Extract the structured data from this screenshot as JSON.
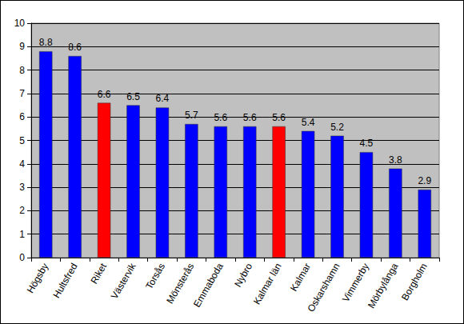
{
  "chart_data": {
    "type": "bar",
    "categories": [
      "Högsby",
      "Hultsfred",
      "Riket",
      "Västervik",
      "Torsås",
      "Mönsterås",
      "Emmaboda",
      "Nybro",
      "Kalmar län",
      "Kalmar",
      "Oskarshamn",
      "Vimmerby",
      "Mörbylånga",
      "Borgholm"
    ],
    "values": [
      8.8,
      8.6,
      6.6,
      6.5,
      6.4,
      5.7,
      5.6,
      5.6,
      5.6,
      5.4,
      5.2,
      4.5,
      3.8,
      2.9
    ],
    "colors": [
      "#0000ff",
      "#0000ff",
      "#ff0000",
      "#0000ff",
      "#0000ff",
      "#0000ff",
      "#0000ff",
      "#0000ff",
      "#ff0000",
      "#0000ff",
      "#0000ff",
      "#0000ff",
      "#0000ff",
      "#0000ff"
    ],
    "ylim": [
      0,
      10
    ],
    "yticks": [
      0,
      1,
      2,
      3,
      4,
      5,
      6,
      7,
      8,
      9,
      10
    ],
    "grid": true,
    "data_labels": true
  }
}
